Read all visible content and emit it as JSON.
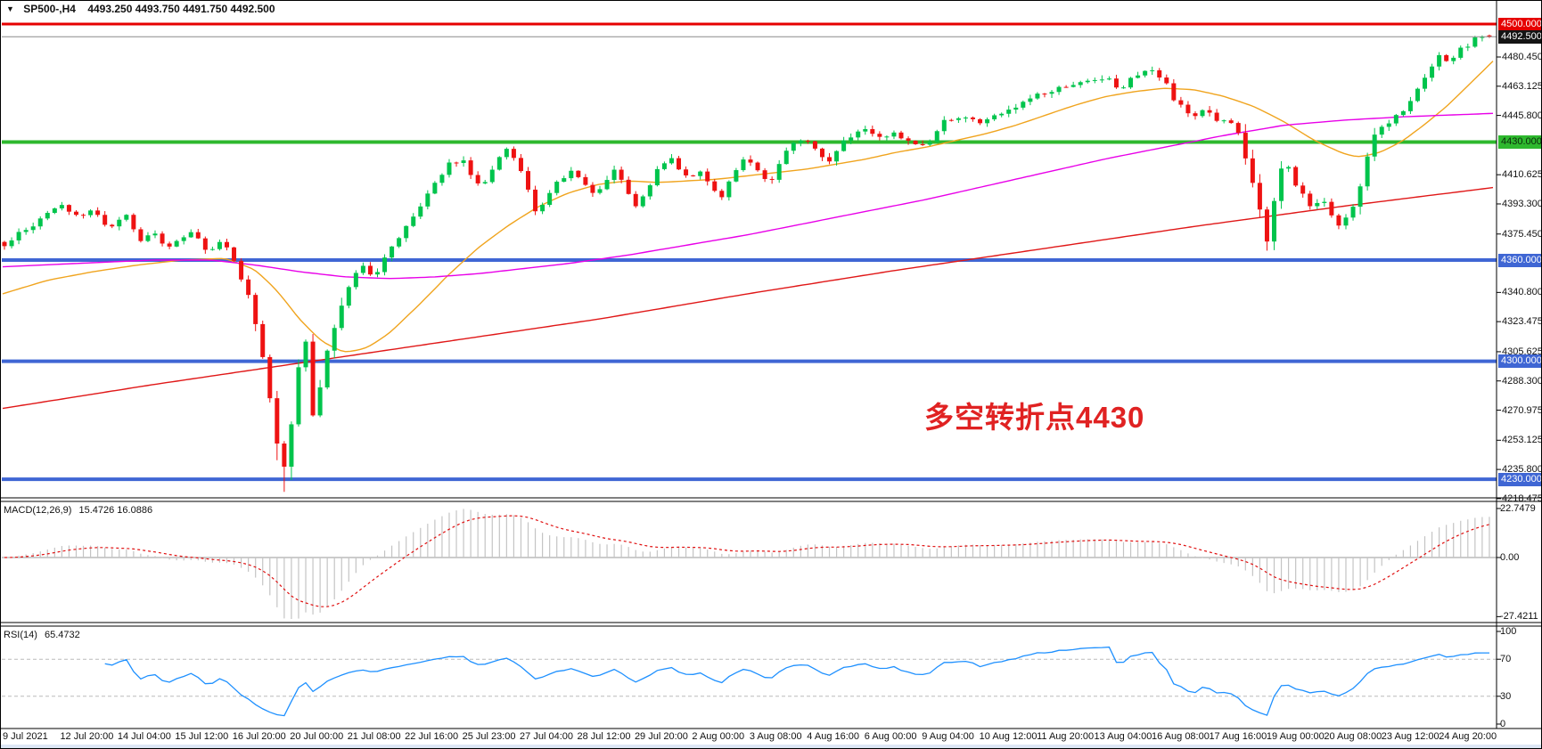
{
  "window": {
    "dropdown_icon": "▼",
    "symbol_tf": "SP500-,H4",
    "quote": "4493.250 4493.750 4491.750 4492.500"
  },
  "annotation": {
    "text": "多空转折点4430",
    "color": "#e02222"
  },
  "macd_panel": {
    "label": "MACD(12,26,9)",
    "values": "15.4726 16.0886"
  },
  "rsi_panel": {
    "label": "RSI(14)",
    "value": "65.4732"
  },
  "chart_data": {
    "type": "candlestick",
    "symbol": "SP500",
    "timeframe": "H4",
    "last_candle": {
      "open": 4493.25,
      "high": 4493.75,
      "low": 4491.75,
      "close": 4492.5
    },
    "n_candles": 208,
    "low_extreme": 4222.5,
    "price_axis_ticks": [
      {
        "label": "4480.450",
        "p": 4480.45
      },
      {
        "label": "4463.125",
        "p": 4463.125
      },
      {
        "label": "4445.800",
        "p": 4445.8
      },
      {
        "label": "4410.625",
        "p": 4410.625
      },
      {
        "label": "4393.300",
        "p": 4393.3
      },
      {
        "label": "4375.450",
        "p": 4375.45
      },
      {
        "label": "4340.800",
        "p": 4340.8
      },
      {
        "label": "4323.475",
        "p": 4323.475
      },
      {
        "label": "4305.625",
        "p": 4305.625
      },
      {
        "label": "4288.300",
        "p": 4288.3
      },
      {
        "label": "4270.975",
        "p": 4270.975
      },
      {
        "label": "4253.125",
        "p": 4253.125
      },
      {
        "label": "4235.800",
        "p": 4235.8
      },
      {
        "label": "4218.475",
        "p": 4218.475
      }
    ],
    "price_badges": [
      {
        "label": "4500.000",
        "p": 4500,
        "bg": "#e60000",
        "fg": "#ffffff"
      },
      {
        "label": "4492.500",
        "p": 4492.5,
        "bg": "#141414",
        "fg": "#ffffff"
      },
      {
        "label": "4430.000",
        "p": 4430,
        "bg": "#2eb82e",
        "fg": "#0a2a0a"
      },
      {
        "label": "4360.000",
        "p": 4360,
        "bg": "#3f66d4",
        "fg": "#ffffff"
      },
      {
        "label": "4300.000",
        "p": 4300,
        "bg": "#3f66d4",
        "fg": "#ffffff"
      },
      {
        "label": "4230.000",
        "p": 4230,
        "bg": "#3f66d4",
        "fg": "#ffffff"
      }
    ],
    "hlines": [
      {
        "p": 4500,
        "color": "#e60000",
        "w": 3
      },
      {
        "p": 4430,
        "color": "#2eb82e",
        "w": 4
      },
      {
        "p": 4360,
        "color": "#3f66d4",
        "w": 4
      },
      {
        "p": 4300,
        "color": "#3f66d4",
        "w": 4
      },
      {
        "p": 4230,
        "color": "#3f66d4",
        "w": 4
      }
    ],
    "current_price_line": {
      "p": 4492.5,
      "color": "#8a8a8a",
      "w": 1
    },
    "candle_colors": {
      "bull": "#00c44c",
      "bear": "#ee1212"
    },
    "close_path": [
      [
        0,
        4368
      ],
      [
        0.013,
        4377
      ],
      [
        0.028,
        4387
      ],
      [
        0.04,
        4393
      ],
      [
        0.05,
        4386
      ],
      [
        0.06,
        4390
      ],
      [
        0.071,
        4379
      ],
      [
        0.082,
        4386
      ],
      [
        0.092,
        4371
      ],
      [
        0.1,
        4377
      ],
      [
        0.109,
        4366
      ],
      [
        0.118,
        4373
      ],
      [
        0.127,
        4379
      ],
      [
        0.137,
        4364
      ],
      [
        0.147,
        4371
      ],
      [
        0.157,
        4353
      ],
      [
        0.165,
        4338
      ],
      [
        0.172,
        4312
      ],
      [
        0.178,
        4280
      ],
      [
        0.183,
        4252
      ],
      [
        0.188,
        4236
      ],
      [
        0.193,
        4261
      ],
      [
        0.198,
        4298
      ],
      [
        0.202,
        4321
      ],
      [
        0.207,
        4266
      ],
      [
        0.212,
        4283
      ],
      [
        0.218,
        4307
      ],
      [
        0.225,
        4329
      ],
      [
        0.233,
        4347
      ],
      [
        0.24,
        4357
      ],
      [
        0.248,
        4349
      ],
      [
        0.256,
        4362
      ],
      [
        0.264,
        4371
      ],
      [
        0.273,
        4384
      ],
      [
        0.283,
        4397
      ],
      [
        0.292,
        4408
      ],
      [
        0.3,
        4417
      ],
      [
        0.308,
        4421
      ],
      [
        0.315,
        4411
      ],
      [
        0.322,
        4403
      ],
      [
        0.33,
        4416
      ],
      [
        0.337,
        4427
      ],
      [
        0.345,
        4419
      ],
      [
        0.352,
        4404
      ],
      [
        0.358,
        4387
      ],
      [
        0.365,
        4396
      ],
      [
        0.373,
        4406
      ],
      [
        0.381,
        4413
      ],
      [
        0.389,
        4408
      ],
      [
        0.396,
        4400
      ],
      [
        0.404,
        4407
      ],
      [
        0.411,
        4413
      ],
      [
        0.418,
        4404
      ],
      [
        0.425,
        4391
      ],
      [
        0.431,
        4400
      ],
      [
        0.439,
        4412
      ],
      [
        0.447,
        4421
      ],
      [
        0.454,
        4415
      ],
      [
        0.461,
        4406
      ],
      [
        0.469,
        4413
      ],
      [
        0.476,
        4403
      ],
      [
        0.483,
        4397
      ],
      [
        0.491,
        4412
      ],
      [
        0.499,
        4422
      ],
      [
        0.507,
        4414
      ],
      [
        0.515,
        4405
      ],
      [
        0.523,
        4420
      ],
      [
        0.531,
        4430
      ],
      [
        0.539,
        4433
      ],
      [
        0.547,
        4426
      ],
      [
        0.555,
        4417
      ],
      [
        0.563,
        4428
      ],
      [
        0.571,
        4435
      ],
      [
        0.581,
        4437
      ],
      [
        0.591,
        4431
      ],
      [
        0.601,
        4436
      ],
      [
        0.611,
        4429
      ],
      [
        0.621,
        4428
      ],
      [
        0.633,
        4441
      ],
      [
        0.643,
        4446
      ],
      [
        0.653,
        4441
      ],
      [
        0.663,
        4444
      ],
      [
        0.673,
        4448
      ],
      [
        0.685,
        4453
      ],
      [
        0.696,
        4457
      ],
      [
        0.707,
        4461
      ],
      [
        0.719,
        4464
      ],
      [
        0.731,
        4466
      ],
      [
        0.742,
        4469
      ],
      [
        0.752,
        4462
      ],
      [
        0.763,
        4470
      ],
      [
        0.772,
        4473
      ],
      [
        0.781,
        4468
      ],
      [
        0.79,
        4452
      ],
      [
        0.798,
        4445
      ],
      [
        0.806,
        4449
      ],
      [
        0.814,
        4444
      ],
      [
        0.822,
        4443
      ],
      [
        0.83,
        4438
      ],
      [
        0.838,
        4412
      ],
      [
        0.845,
        4391
      ],
      [
        0.851,
        4368
      ],
      [
        0.857,
        4408
      ],
      [
        0.863,
        4420
      ],
      [
        0.869,
        4406
      ],
      [
        0.875,
        4399
      ],
      [
        0.881,
        4390
      ],
      [
        0.887,
        4399
      ],
      [
        0.893,
        4387
      ],
      [
        0.899,
        4380
      ],
      [
        0.905,
        4387
      ],
      [
        0.911,
        4396
      ],
      [
        0.917,
        4420
      ],
      [
        0.923,
        4434
      ],
      [
        0.929,
        4438
      ],
      [
        0.935,
        4443
      ],
      [
        0.942,
        4449
      ],
      [
        0.95,
        4459
      ],
      [
        0.958,
        4471
      ],
      [
        0.966,
        4480
      ],
      [
        0.973,
        4477
      ],
      [
        0.981,
        4485
      ],
      [
        0.989,
        4490
      ],
      [
        0.995,
        4493
      ],
      [
        1,
        4492.5
      ]
    ],
    "ma_lines": [
      {
        "name": "fast-ma-orange",
        "color": "#f0a41e",
        "w": 1.4,
        "points": [
          [
            0,
            4340
          ],
          [
            0.03,
            4348
          ],
          [
            0.06,
            4353
          ],
          [
            0.09,
            4357
          ],
          [
            0.12,
            4360
          ],
          [
            0.15,
            4361
          ],
          [
            0.17,
            4354
          ],
          [
            0.185,
            4341
          ],
          [
            0.2,
            4324
          ],
          [
            0.215,
            4311
          ],
          [
            0.23,
            4305
          ],
          [
            0.245,
            4308
          ],
          [
            0.26,
            4317
          ],
          [
            0.28,
            4334
          ],
          [
            0.3,
            4352
          ],
          [
            0.32,
            4368
          ],
          [
            0.34,
            4381
          ],
          [
            0.36,
            4392
          ],
          [
            0.38,
            4400
          ],
          [
            0.4,
            4405
          ],
          [
            0.42,
            4407
          ],
          [
            0.44,
            4406
          ],
          [
            0.46,
            4407
          ],
          [
            0.48,
            4408
          ],
          [
            0.5,
            4410
          ],
          [
            0.52,
            4412
          ],
          [
            0.54,
            4414
          ],
          [
            0.56,
            4417
          ],
          [
            0.58,
            4420
          ],
          [
            0.6,
            4424
          ],
          [
            0.62,
            4427
          ],
          [
            0.64,
            4431
          ],
          [
            0.66,
            4435
          ],
          [
            0.68,
            4440
          ],
          [
            0.7,
            4446
          ],
          [
            0.72,
            4452
          ],
          [
            0.74,
            4457
          ],
          [
            0.76,
            4460
          ],
          [
            0.78,
            4462
          ],
          [
            0.8,
            4461
          ],
          [
            0.82,
            4457
          ],
          [
            0.84,
            4451
          ],
          [
            0.86,
            4442
          ],
          [
            0.88,
            4431
          ],
          [
            0.9,
            4423
          ],
          [
            0.91,
            4421
          ],
          [
            0.925,
            4424
          ],
          [
            0.94,
            4431
          ],
          [
            0.955,
            4441
          ],
          [
            0.97,
            4452
          ],
          [
            0.985,
            4465
          ],
          [
            1,
            4478
          ]
        ]
      },
      {
        "name": "mid-ma-magenta",
        "color": "#e800e8",
        "w": 1.4,
        "points": [
          [
            0,
            4356
          ],
          [
            0.05,
            4358
          ],
          [
            0.1,
            4360
          ],
          [
            0.14,
            4360
          ],
          [
            0.17,
            4357
          ],
          [
            0.2,
            4353
          ],
          [
            0.23,
            4350
          ],
          [
            0.26,
            4349
          ],
          [
            0.29,
            4350
          ],
          [
            0.32,
            4352
          ],
          [
            0.35,
            4355
          ],
          [
            0.38,
            4358
          ],
          [
            0.42,
            4363
          ],
          [
            0.46,
            4369
          ],
          [
            0.5,
            4375
          ],
          [
            0.54,
            4382
          ],
          [
            0.58,
            4389
          ],
          [
            0.62,
            4396
          ],
          [
            0.66,
            4404
          ],
          [
            0.7,
            4412
          ],
          [
            0.74,
            4420
          ],
          [
            0.78,
            4427
          ],
          [
            0.82,
            4434
          ],
          [
            0.86,
            4440
          ],
          [
            0.9,
            4443
          ],
          [
            0.94,
            4445
          ],
          [
            0.97,
            4446
          ],
          [
            1,
            4447
          ]
        ]
      },
      {
        "name": "slow-ma-red",
        "color": "#e01818",
        "w": 1.4,
        "points": [
          [
            0,
            4272
          ],
          [
            0.1,
            4286
          ],
          [
            0.2,
            4299
          ],
          [
            0.3,
            4312
          ],
          [
            0.4,
            4325
          ],
          [
            0.5,
            4340
          ],
          [
            0.6,
            4354
          ],
          [
            0.7,
            4367
          ],
          [
            0.8,
            4380
          ],
          [
            0.9,
            4392
          ],
          [
            1,
            4403
          ]
        ]
      }
    ],
    "macd": {
      "params": [
        12,
        26,
        9
      ],
      "bar_color": "#c4c4c4",
      "signal_color": "#e01010",
      "axis_ticks": [
        {
          "label": "22.7479",
          "v": 22.7479
        },
        {
          "label": "0.00",
          "v": 0
        },
        {
          "label": "-27.4211",
          "v": -27.4211
        }
      ]
    },
    "rsi": {
      "period": 14,
      "line_color": "#1e90ff",
      "axis_ticks": [
        {
          "label": "100",
          "v": 100
        },
        {
          "label": "70",
          "v": 70
        },
        {
          "label": "30",
          "v": 30
        },
        {
          "label": "0",
          "v": 0
        }
      ],
      "guides": [
        70,
        30
      ]
    },
    "time_axis_labels": [
      "9 Jul 2021",
      "12 Jul 20:00",
      "14 Jul 04:00",
      "15 Jul 12:00",
      "16 Jul 20:00",
      "20 Jul 00:00",
      "21 Jul 08:00",
      "22 Jul 16:00",
      "25 Jul 23:00",
      "27 Jul 04:00",
      "28 Jul 12:00",
      "29 Jul 20:00",
      "2 Aug 00:00",
      "3 Aug 08:00",
      "4 Aug 16:00",
      "6 Aug 00:00",
      "9 Aug 04:00",
      "10 Aug 12:00",
      "11 Aug 20:00",
      "13 Aug 04:00",
      "16 Aug 08:00",
      "17 Aug 16:00",
      "19 Aug 00:00",
      "20 Aug 08:00",
      "23 Aug 12:00",
      "24 Aug 20:00"
    ]
  }
}
